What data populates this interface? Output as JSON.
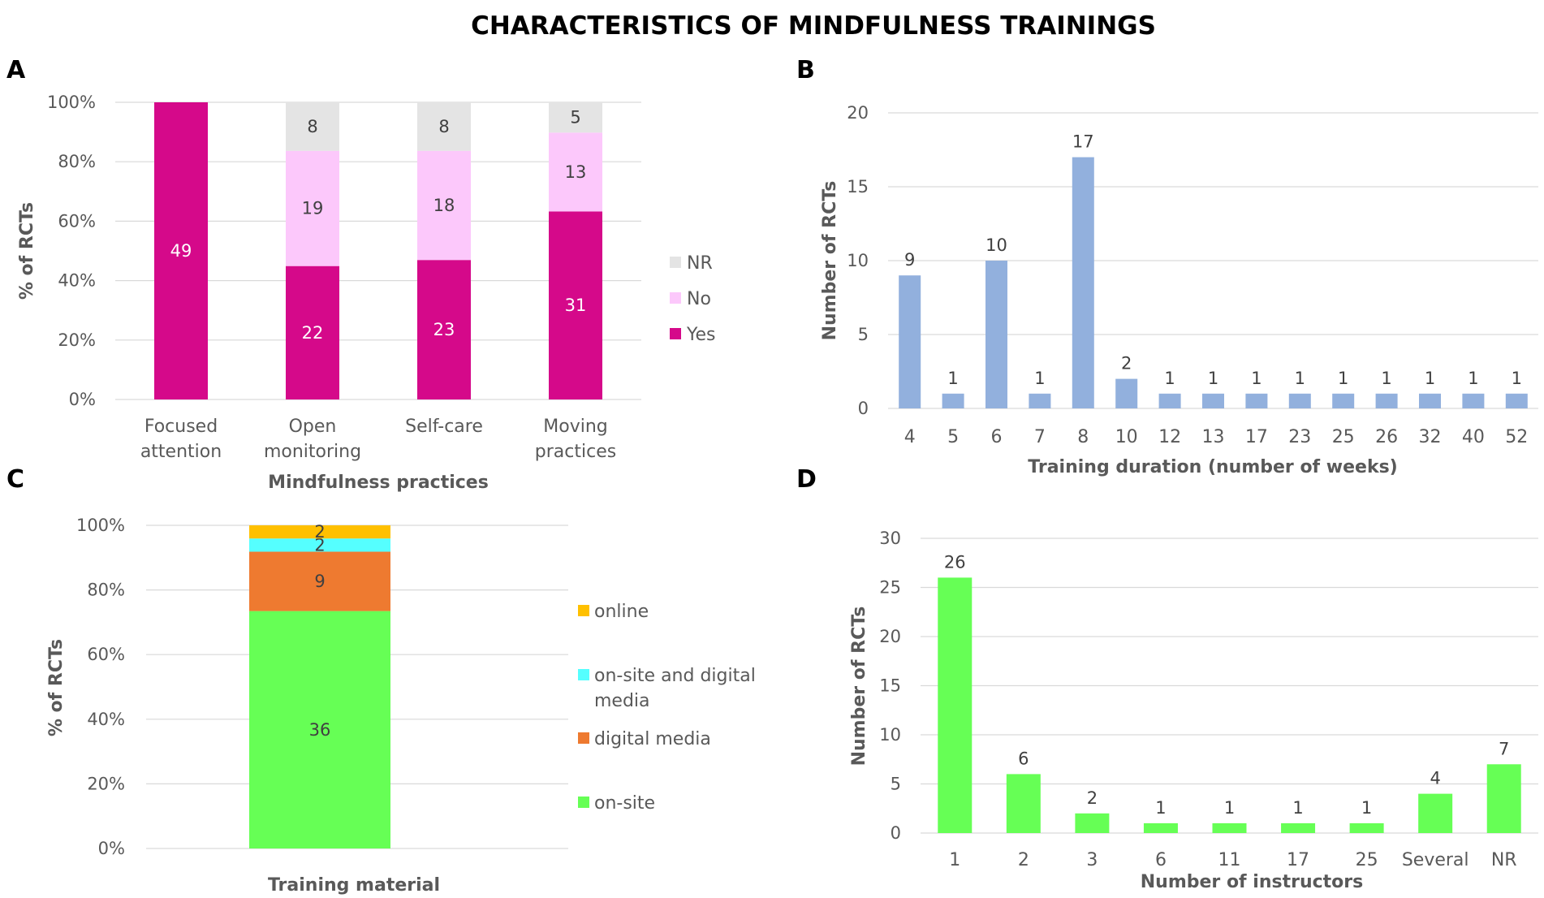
{
  "figure": {
    "title": "CHARACTERISTICS OF MINDFULNESS TRAININGS",
    "panel_labels": [
      "A",
      "B",
      "C",
      "D"
    ]
  },
  "colors": {
    "yes": "#d5098a",
    "no": "#fcc8fb",
    "nr": "#e4e4e4",
    "blue": "#92b0dd",
    "green": "#66ff55",
    "online": "#ffc000",
    "onsite_digital": "#55ffff",
    "digital": "#ee7a30"
  },
  "chart_data": [
    {
      "panel": "A",
      "type": "bar",
      "stacked": "percent",
      "title": "",
      "xlabel": "Mindfulness practices",
      "ylabel": "% of RCTs",
      "categories": [
        [
          "Focused",
          "attention"
        ],
        [
          "Open",
          "monitoring"
        ],
        [
          "Self-care"
        ],
        [
          "Moving",
          "practices"
        ]
      ],
      "series": [
        {
          "name": "Yes",
          "values": [
            49,
            22,
            23,
            31
          ]
        },
        {
          "name": "No",
          "values": [
            0,
            19,
            18,
            13
          ]
        },
        {
          "name": "NR",
          "values": [
            0,
            8,
            8,
            5
          ]
        }
      ],
      "yticks": [
        "0%",
        "20%",
        "40%",
        "60%",
        "80%",
        "100%"
      ],
      "ylim": [
        0,
        100
      ],
      "legend": [
        "NR",
        "No",
        "Yes"
      ],
      "legend_position": "right"
    },
    {
      "panel": "B",
      "type": "bar",
      "title": "",
      "xlabel": "Training duration (number of weeks)",
      "ylabel": "Number of RCTs",
      "categories": [
        "4",
        "5",
        "6",
        "7",
        "8",
        "10",
        "12",
        "13",
        "17",
        "23",
        "25",
        "26",
        "32",
        "40",
        "52"
      ],
      "values": [
        9,
        1,
        10,
        1,
        17,
        2,
        1,
        1,
        1,
        1,
        1,
        1,
        1,
        1,
        1
      ],
      "yticks": [
        "0",
        "5",
        "10",
        "15",
        "20"
      ],
      "ylim": [
        0,
        20
      ]
    },
    {
      "panel": "C",
      "type": "bar",
      "stacked": "percent",
      "title": "",
      "xlabel": "Training material",
      "ylabel": "% of RCTs",
      "categories": [
        ""
      ],
      "series": [
        {
          "name": "on-site",
          "values": [
            36
          ]
        },
        {
          "name": "digital media",
          "values": [
            9
          ]
        },
        {
          "name": "on-site and digital media",
          "values": [
            2
          ]
        },
        {
          "name": "online",
          "values": [
            2
          ]
        }
      ],
      "yticks": [
        "0%",
        "20%",
        "40%",
        "60%",
        "80%",
        "100%"
      ],
      "ylim": [
        0,
        100
      ],
      "legend": [
        [
          "online"
        ],
        [
          "on-site and digital",
          "media"
        ],
        [
          "digital media"
        ],
        [
          "on-site"
        ]
      ],
      "legend_position": "right"
    },
    {
      "panel": "D",
      "type": "bar",
      "title": "",
      "xlabel": "Number of instructors",
      "ylabel": "Number of RCTs",
      "categories": [
        "1",
        "2",
        "3",
        "6",
        "11",
        "17",
        "25",
        "Several",
        "NR"
      ],
      "values": [
        26,
        6,
        2,
        1,
        1,
        1,
        1,
        4,
        7
      ],
      "yticks": [
        "0",
        "5",
        "10",
        "15",
        "20",
        "25",
        "30"
      ],
      "ylim": [
        0,
        30
      ]
    }
  ]
}
